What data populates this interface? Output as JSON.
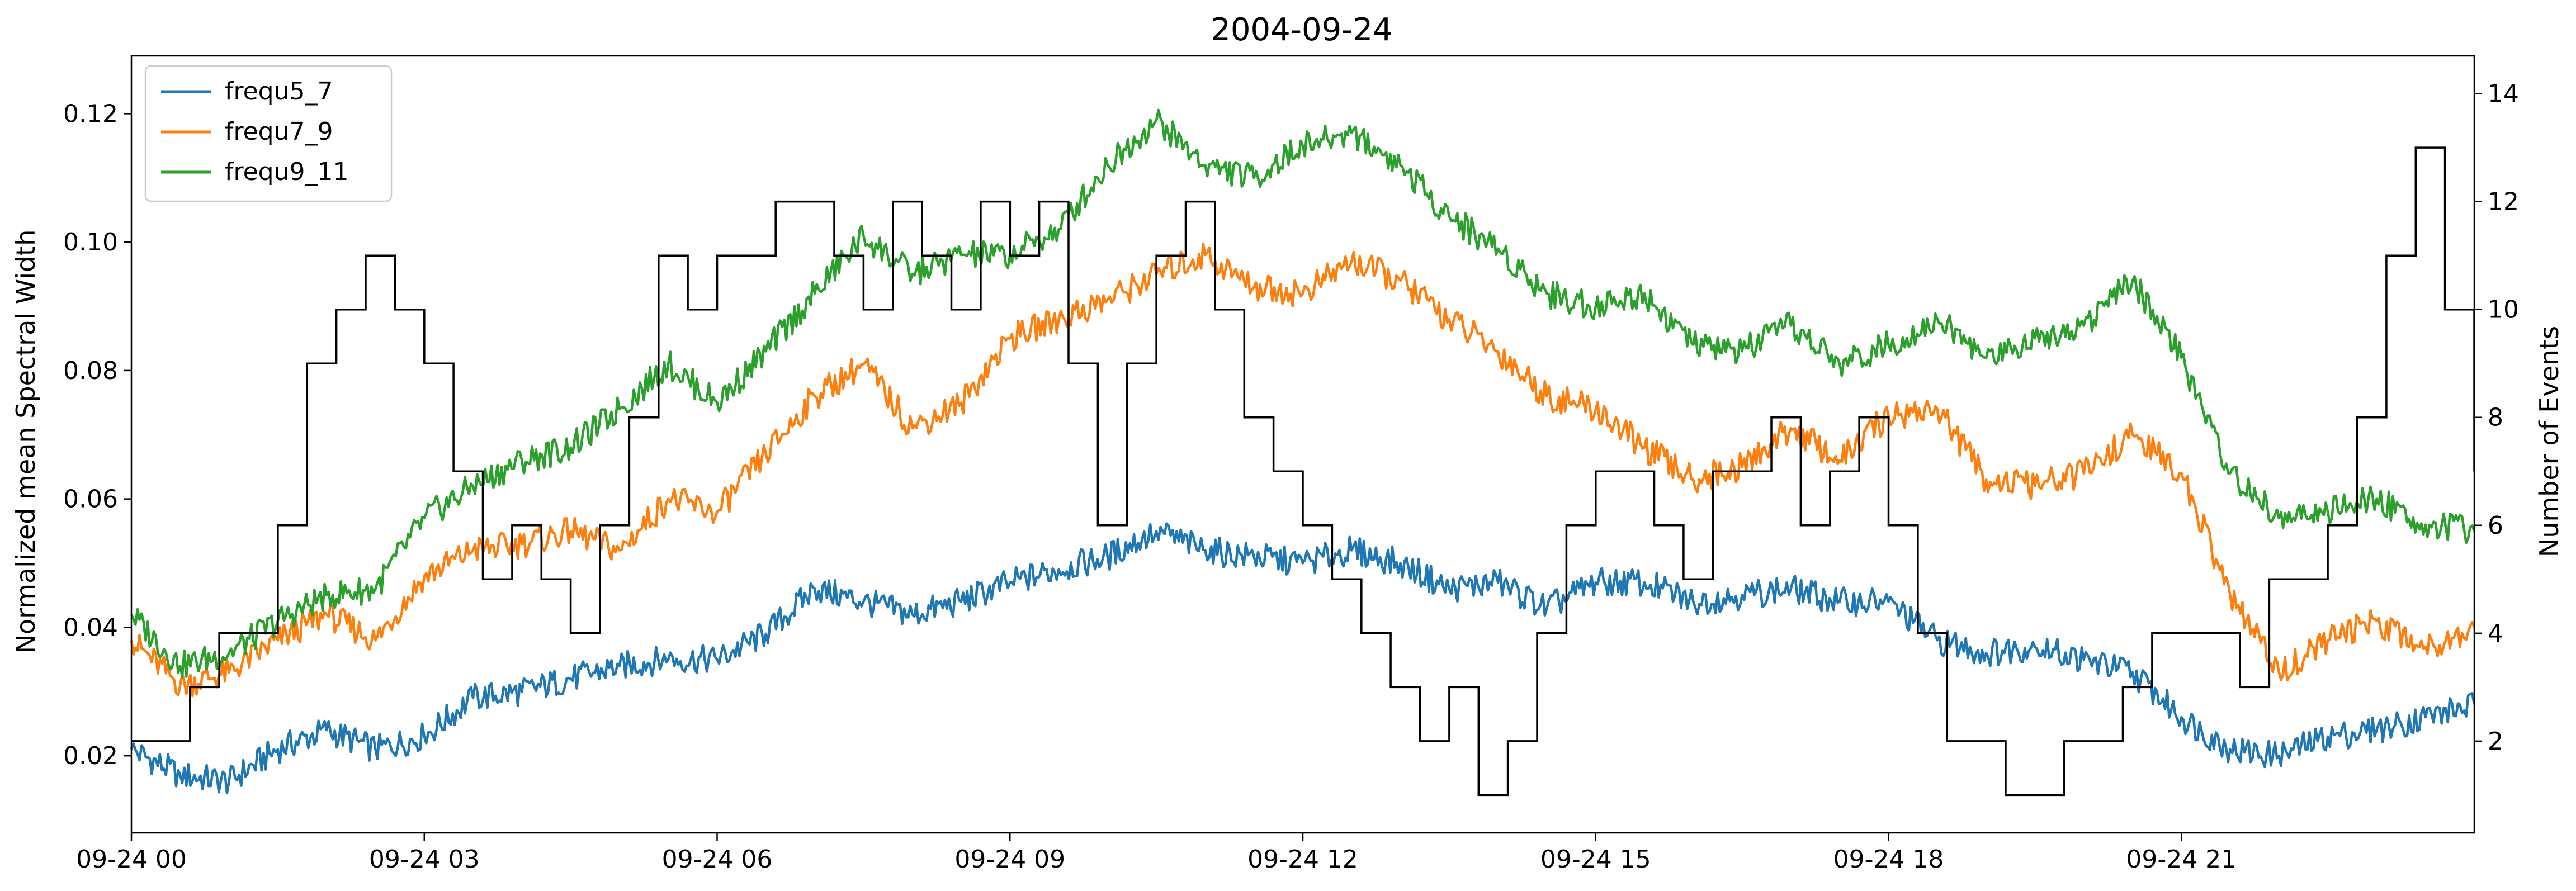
{
  "chart_data": {
    "type": "line",
    "title": "2004-09-24",
    "xlabel": "",
    "ylabel_left": "Normalized mean Spectral Width",
    "ylabel_right": "Number of Events",
    "x_tick_labels": [
      "09-24 00",
      "09-24 03",
      "09-24 06",
      "09-24 09",
      "09-24 12",
      "09-24 15",
      "09-24 18",
      "09-24 21"
    ],
    "x_tick_hours": [
      0,
      3,
      6,
      9,
      12,
      15,
      18,
      21
    ],
    "xlim_hours": [
      0,
      24
    ],
    "ylim_left": [
      0.008,
      0.129
    ],
    "yticks_left": [
      0.02,
      0.04,
      0.06,
      0.08,
      0.1,
      0.12
    ],
    "ytick_labels_left": [
      "0.02",
      "0.04",
      "0.06",
      "0.08",
      "0.10",
      "0.12"
    ],
    "ylim_right": [
      0.3,
      14.7
    ],
    "yticks_right": [
      2,
      4,
      6,
      8,
      10,
      12,
      14
    ],
    "ytick_labels_right": [
      "2",
      "4",
      "6",
      "8",
      "10",
      "12",
      "14"
    ],
    "grid": false,
    "legend_position": "upper-left",
    "series": [
      {
        "name": "frequ5_7",
        "color": "#1f77b4",
        "axis": "left",
        "x_hours": [
          0,
          0.5,
          1,
          1.5,
          2,
          2.5,
          3,
          3.5,
          4,
          4.5,
          5,
          5.5,
          6,
          6.5,
          7,
          7.5,
          8,
          8.5,
          9,
          9.5,
          10,
          10.5,
          11,
          11.5,
          12,
          12.5,
          13,
          13.5,
          14,
          14.5,
          15,
          15.5,
          16,
          16.5,
          17,
          17.5,
          18,
          18.5,
          19,
          19.5,
          20,
          20.5,
          21,
          21.5,
          22,
          22.5,
          23,
          23.5,
          24
        ],
        "y": [
          0.021,
          0.017,
          0.016,
          0.021,
          0.024,
          0.021,
          0.023,
          0.029,
          0.03,
          0.032,
          0.034,
          0.035,
          0.035,
          0.039,
          0.046,
          0.044,
          0.042,
          0.044,
          0.047,
          0.049,
          0.051,
          0.055,
          0.052,
          0.051,
          0.05,
          0.052,
          0.05,
          0.046,
          0.047,
          0.043,
          0.047,
          0.047,
          0.044,
          0.045,
          0.046,
          0.044,
          0.044,
          0.038,
          0.036,
          0.037,
          0.035,
          0.033,
          0.026,
          0.021,
          0.02,
          0.023,
          0.024,
          0.026,
          0.028
        ]
      },
      {
        "name": "frequ7_9",
        "color": "#ff7f0e",
        "axis": "left",
        "x_hours": [
          0,
          0.5,
          1,
          1.5,
          2,
          2.5,
          3,
          3.5,
          4,
          4.5,
          5,
          5.5,
          6,
          6.5,
          7,
          7.5,
          8,
          8.5,
          9,
          9.5,
          10,
          10.5,
          11,
          11.5,
          12,
          12.5,
          13,
          13.5,
          14,
          14.5,
          15,
          15.5,
          16,
          16.5,
          17,
          17.5,
          18,
          18.5,
          19,
          19.5,
          20,
          20.5,
          21,
          21.5,
          22,
          22.5,
          23,
          23.5,
          24
        ],
        "y": [
          0.038,
          0.031,
          0.033,
          0.038,
          0.042,
          0.038,
          0.048,
          0.052,
          0.053,
          0.055,
          0.052,
          0.06,
          0.058,
          0.067,
          0.076,
          0.081,
          0.071,
          0.075,
          0.085,
          0.088,
          0.091,
          0.095,
          0.098,
          0.093,
          0.092,
          0.097,
          0.094,
          0.088,
          0.083,
          0.076,
          0.074,
          0.068,
          0.063,
          0.065,
          0.071,
          0.066,
          0.073,
          0.074,
          0.063,
          0.062,
          0.064,
          0.07,
          0.064,
          0.045,
          0.033,
          0.038,
          0.041,
          0.037,
          0.04
        ]
      },
      {
        "name": "frequ9_11",
        "color": "#2ca02c",
        "axis": "left",
        "x_hours": [
          0,
          0.5,
          1,
          1.5,
          2,
          2.5,
          3,
          3.5,
          4,
          4.5,
          5,
          5.5,
          6,
          6.5,
          7,
          7.5,
          8,
          8.5,
          9,
          9.5,
          10,
          10.5,
          11,
          11.5,
          12,
          12.5,
          13,
          13.5,
          14,
          14.5,
          15,
          15.5,
          16,
          16.5,
          17,
          17.5,
          18,
          18.5,
          19,
          19.5,
          20,
          20.5,
          21,
          21.5,
          22,
          22.5,
          23,
          23.5,
          24
        ],
        "y": [
          0.042,
          0.034,
          0.036,
          0.041,
          0.045,
          0.046,
          0.057,
          0.062,
          0.066,
          0.068,
          0.074,
          0.081,
          0.075,
          0.083,
          0.092,
          0.101,
          0.095,
          0.098,
          0.098,
          0.102,
          0.112,
          0.119,
          0.112,
          0.11,
          0.115,
          0.117,
          0.112,
          0.104,
          0.099,
          0.092,
          0.09,
          0.092,
          0.084,
          0.083,
          0.087,
          0.081,
          0.084,
          0.088,
          0.082,
          0.085,
          0.087,
          0.094,
          0.082,
          0.064,
          0.057,
          0.058,
          0.06,
          0.056,
          0.055
        ]
      }
    ],
    "events_series": {
      "name": "Number of Events",
      "color": "#000000",
      "axis": "right",
      "style": "step",
      "x_hours": [
        0,
        0.3,
        0.6,
        0.9,
        1.2,
        1.5,
        1.8,
        2.1,
        2.4,
        2.7,
        3.0,
        3.3,
        3.6,
        3.9,
        4.2,
        4.5,
        4.8,
        5.1,
        5.4,
        5.7,
        6.0,
        6.3,
        6.6,
        6.9,
        7.2,
        7.5,
        7.8,
        8.1,
        8.4,
        8.7,
        9.0,
        9.3,
        9.6,
        9.9,
        10.2,
        10.5,
        10.8,
        11.1,
        11.4,
        11.7,
        12.0,
        12.3,
        12.6,
        12.9,
        13.2,
        13.5,
        13.8,
        14.1,
        14.4,
        14.7,
        15.0,
        15.3,
        15.6,
        15.9,
        16.2,
        16.5,
        16.8,
        17.1,
        17.4,
        17.7,
        18.0,
        18.3,
        18.6,
        18.9,
        19.2,
        19.5,
        19.8,
        20.1,
        20.4,
        20.7,
        21.0,
        21.3,
        21.6,
        21.9,
        22.2,
        22.5,
        22.8,
        23.1,
        23.4,
        23.7,
        24.0
      ],
      "y": [
        2,
        2,
        3,
        4,
        4,
        6,
        9,
        10,
        11,
        10,
        9,
        7,
        5,
        6,
        5,
        4,
        6,
        8,
        11,
        10,
        11,
        11,
        12,
        12,
        11,
        10,
        12,
        11,
        10,
        12,
        11,
        12,
        9,
        6,
        9,
        11,
        12,
        10,
        8,
        7,
        6,
        5,
        4,
        3,
        2,
        3,
        1,
        2,
        4,
        6,
        7,
        7,
        6,
        5,
        7,
        7,
        8,
        6,
        7,
        8,
        6,
        4,
        2,
        2,
        1,
        1,
        2,
        2,
        3,
        4,
        4,
        4,
        3,
        5,
        5,
        6,
        8,
        11,
        13,
        10,
        7
      ]
    }
  }
}
